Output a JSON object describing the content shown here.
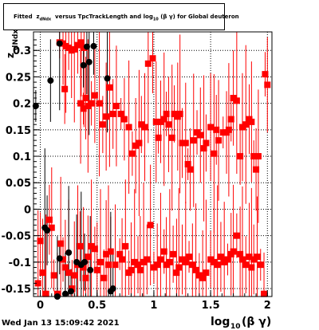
{
  "title": {
    "prefix": "Fitted",
    "zsym": "z",
    "zsub": "dNdx",
    "middle": "versus TpcTrackLength and log",
    "logsub": "10",
    "suffix": "(β γ) for Global deuteron"
  },
  "y_axis": {
    "label": "z",
    "label_sub": "dNdx"
  },
  "x_axis": {
    "label": "log",
    "label_sub": "10",
    "label_tail": "(β γ)"
  },
  "footer": "Wed Jan 13 15:09:42 2021",
  "colors": {
    "primary": "#ff0000",
    "secondary": "#000000",
    "grid": "#000000",
    "frame": "#000000"
  },
  "chart_data": {
    "type": "scatter",
    "title": "Fitted z_dNdx versus TpcTrackLength and log10(β γ) for Global deuteron",
    "xlabel": "log10(β γ)",
    "ylabel": "z_dNdx",
    "xlim": [
      -0.06,
      2.04
    ],
    "ylim": [
      -0.165,
      0.335
    ],
    "xticks": [
      0,
      0.5,
      1,
      1.5,
      2
    ],
    "xtick_labels": [
      "0",
      "0.5",
      "1",
      "1.5",
      "2"
    ],
    "yticks": [
      -0.15,
      -0.1,
      -0.05,
      0,
      0.05,
      0.1,
      0.15,
      0.2,
      0.25,
      0.3
    ],
    "ytick_labels": [
      "-0.15",
      "-0.1",
      "-0.05",
      "0",
      "0.05",
      "0.1",
      "0.15",
      "0.2",
      "0.25",
      "0.3"
    ],
    "grid": true,
    "series": [
      {
        "color": "#ff0000",
        "points": [
          [
            0.17,
            0.315
          ],
          [
            0.2,
            0.313
          ],
          [
            0.225,
            0.308
          ],
          [
            0.25,
            0.305
          ],
          [
            0.275,
            0.3
          ],
          [
            0.3,
            0.302
          ],
          [
            0.33,
            0.31
          ],
          [
            0.36,
            0.315
          ],
          [
            0.385,
            0.305
          ],
          [
            0.215,
            0.227
          ],
          [
            0.355,
            0.2
          ],
          [
            0.38,
            0.19
          ],
          [
            0.4,
            0.21
          ],
          [
            0.42,
            0.195
          ],
          [
            0.45,
            0.2
          ],
          [
            0.48,
            0.215
          ],
          [
            0.52,
            0.2
          ],
          [
            0.55,
            0.16
          ],
          [
            0.58,
            0.175
          ],
          [
            0.61,
            0.23
          ],
          [
            0.64,
            0.18
          ],
          [
            0.67,
            0.195
          ],
          [
            0.71,
            0.18
          ],
          [
            0.74,
            0.17
          ],
          [
            0.78,
            0.155
          ],
          [
            0.81,
            0.105
          ],
          [
            0.84,
            0.12
          ],
          [
            0.87,
            0.125
          ],
          [
            0.89,
            0.16
          ],
          [
            0.92,
            0.155
          ],
          [
            0.95,
            0.275
          ],
          [
            0.99,
            0.285
          ],
          [
            1.02,
            0.165
          ],
          [
            1.04,
            0.135
          ],
          [
            1.06,
            0.165
          ],
          [
            1.09,
            0.17
          ],
          [
            1.11,
            0.18
          ],
          [
            1.13,
            0.16
          ],
          [
            1.16,
            0.135
          ],
          [
            1.18,
            0.18
          ],
          [
            1.21,
            0.175
          ],
          [
            1.23,
            0.18
          ],
          [
            1.25,
            0.125
          ],
          [
            1.28,
            0.125
          ],
          [
            1.3,
            0.085
          ],
          [
            1.32,
            0.075
          ],
          [
            1.35,
            0.13
          ],
          [
            1.38,
            0.145
          ],
          [
            1.41,
            0.14
          ],
          [
            1.44,
            0.115
          ],
          [
            1.46,
            0.125
          ],
          [
            1.5,
            0.155
          ],
          [
            1.53,
            0.105
          ],
          [
            1.55,
            0.15
          ],
          [
            1.57,
            0.13
          ],
          [
            1.61,
            0.145
          ],
          [
            1.64,
            0.145
          ],
          [
            1.66,
            0.15
          ],
          [
            1.68,
            0.17
          ],
          [
            1.7,
            0.21
          ],
          [
            1.73,
            0.205
          ],
          [
            1.76,
            0.1
          ],
          [
            1.78,
            0.155
          ],
          [
            1.81,
            0.16
          ],
          [
            1.84,
            0.17
          ],
          [
            1.86,
            0.165
          ],
          [
            1.88,
            0.1
          ],
          [
            1.9,
            0.075
          ],
          [
            1.92,
            0.1
          ],
          [
            1.98,
            0.255
          ],
          [
            2.0,
            0.235
          ],
          [
            -0.02,
            -0.14
          ],
          [
            0.0,
            -0.06
          ],
          [
            0.02,
            -0.12
          ],
          [
            0.05,
            -0.16
          ],
          [
            0.08,
            -0.02
          ],
          [
            0.1,
            -0.035
          ],
          [
            0.12,
            -0.125
          ],
          [
            0.15,
            -0.16
          ],
          [
            0.18,
            -0.065
          ],
          [
            0.2,
            -0.095
          ],
          [
            0.22,
            -0.11
          ],
          [
            0.25,
            -0.12
          ],
          [
            0.28,
            -0.15
          ],
          [
            0.3,
            -0.125
          ],
          [
            0.33,
            -0.105
          ],
          [
            0.35,
            -0.07
          ],
          [
            0.38,
            -0.11
          ],
          [
            0.4,
            -0.13
          ],
          [
            0.42,
            -0.09
          ],
          [
            0.45,
            -0.07
          ],
          [
            0.48,
            -0.075
          ],
          [
            0.5,
            -0.115
          ],
          [
            0.53,
            -0.1
          ],
          [
            0.56,
            -0.13
          ],
          [
            0.58,
            -0.085
          ],
          [
            0.6,
            -0.105
          ],
          [
            0.62,
            -0.08
          ],
          [
            0.66,
            -0.105
          ],
          [
            0.7,
            -0.085
          ],
          [
            0.72,
            -0.095
          ],
          [
            0.75,
            -0.07
          ],
          [
            0.78,
            -0.12
          ],
          [
            0.8,
            -0.115
          ],
          [
            0.83,
            -0.1
          ],
          [
            0.86,
            -0.105
          ],
          [
            0.88,
            -0.115
          ],
          [
            0.91,
            -0.1
          ],
          [
            0.94,
            -0.095
          ],
          [
            0.97,
            -0.03
          ],
          [
            1.0,
            -0.11
          ],
          [
            1.03,
            -0.105
          ],
          [
            1.06,
            -0.095
          ],
          [
            1.09,
            -0.08
          ],
          [
            1.11,
            -0.105
          ],
          [
            1.14,
            -0.1
          ],
          [
            1.17,
            -0.085
          ],
          [
            1.2,
            -0.12
          ],
          [
            1.22,
            -0.11
          ],
          [
            1.25,
            -0.095
          ],
          [
            1.28,
            -0.1
          ],
          [
            1.31,
            -0.09
          ],
          [
            1.34,
            -0.105
          ],
          [
            1.37,
            -0.115
          ],
          [
            1.4,
            -0.125
          ],
          [
            1.43,
            -0.13
          ],
          [
            1.46,
            -0.12
          ],
          [
            1.5,
            -0.095
          ],
          [
            1.53,
            -0.1
          ],
          [
            1.56,
            -0.105
          ],
          [
            1.59,
            -0.09
          ],
          [
            1.62,
            -0.1
          ],
          [
            1.65,
            -0.095
          ],
          [
            1.68,
            -0.085
          ],
          [
            1.7,
            -0.08
          ],
          [
            1.73,
            -0.05
          ],
          [
            1.76,
            -0.085
          ],
          [
            1.78,
            -0.095
          ],
          [
            1.81,
            -0.105
          ],
          [
            1.84,
            -0.09
          ],
          [
            1.86,
            -0.11
          ],
          [
            1.88,
            -0.095
          ],
          [
            1.91,
            -0.09
          ],
          [
            1.94,
            -0.105
          ],
          [
            1.97,
            -0.16
          ]
        ]
      },
      {
        "color": "#000000",
        "points": [
          [
            -0.04,
            0.195
          ],
          [
            0.09,
            0.243
          ],
          [
            0.17,
            0.313
          ],
          [
            0.38,
            0.272
          ],
          [
            0.41,
            0.307
          ],
          [
            0.43,
            0.278
          ],
          [
            0.47,
            0.308
          ],
          [
            0.59,
            0.247
          ],
          [
            0.04,
            -0.035
          ],
          [
            0.06,
            -0.04
          ],
          [
            0.15,
            -0.165
          ],
          [
            0.17,
            -0.093
          ],
          [
            0.22,
            -0.16
          ],
          [
            0.25,
            -0.082
          ],
          [
            0.27,
            -0.155
          ],
          [
            0.32,
            -0.1
          ],
          [
            0.36,
            -0.105
          ],
          [
            0.39,
            -0.1
          ],
          [
            0.44,
            -0.115
          ],
          [
            0.62,
            -0.155
          ],
          [
            0.64,
            -0.15
          ]
        ]
      }
    ]
  }
}
